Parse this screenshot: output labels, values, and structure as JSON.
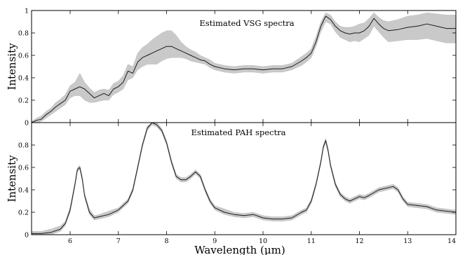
{
  "chart_data": [
    {
      "type": "area",
      "title": "Estimated VSG spectra",
      "xlabel": "",
      "ylabel": "Intensity",
      "xlim": [
        5.2,
        14
      ],
      "ylim": [
        0,
        1
      ],
      "xticks": [
        "6",
        "7",
        "8",
        "9",
        "10",
        "11",
        "12",
        "13",
        "14"
      ],
      "yticks": [
        "0",
        "0.2",
        "0.4",
        "0.6",
        "0.8",
        "1"
      ],
      "grid": false,
      "series": [
        {
          "x": [
            5.2,
            5.3,
            5.4,
            5.5,
            5.6,
            5.7,
            5.8,
            5.9,
            6.0,
            6.1,
            6.2,
            6.3,
            6.4,
            6.5,
            6.6,
            6.7,
            6.8,
            6.9,
            7.0,
            7.1,
            7.2,
            7.3,
            7.4,
            7.5,
            7.6,
            7.7,
            7.8,
            7.9,
            8.0,
            8.1,
            8.2,
            8.3,
            8.4,
            8.5,
            8.6,
            8.7,
            8.8,
            8.9,
            9.0,
            9.2,
            9.4,
            9.6,
            9.8,
            10.0,
            10.2,
            10.4,
            10.6,
            10.8,
            10.9,
            11.0,
            11.1,
            11.2,
            11.3,
            11.4,
            11.5,
            11.6,
            11.7,
            11.8,
            11.9,
            12.0,
            12.1,
            12.2,
            12.3,
            12.4,
            12.5,
            12.6,
            12.8,
            13.0,
            13.2,
            13.4,
            13.6,
            13.8,
            14.0
          ],
          "y": [
            0.0,
            0.02,
            0.03,
            0.07,
            0.1,
            0.14,
            0.17,
            0.2,
            0.28,
            0.3,
            0.32,
            0.3,
            0.26,
            0.22,
            0.24,
            0.26,
            0.24,
            0.3,
            0.32,
            0.36,
            0.46,
            0.44,
            0.54,
            0.58,
            0.6,
            0.62,
            0.64,
            0.66,
            0.68,
            0.68,
            0.66,
            0.64,
            0.62,
            0.6,
            0.58,
            0.56,
            0.55,
            0.52,
            0.5,
            0.48,
            0.47,
            0.48,
            0.48,
            0.47,
            0.48,
            0.48,
            0.5,
            0.55,
            0.58,
            0.62,
            0.72,
            0.86,
            0.95,
            0.92,
            0.86,
            0.82,
            0.8,
            0.79,
            0.8,
            0.8,
            0.82,
            0.86,
            0.93,
            0.88,
            0.84,
            0.82,
            0.83,
            0.85,
            0.86,
            0.88,
            0.86,
            0.84,
            0.84
          ],
          "lower": [
            0.0,
            0.0,
            0.01,
            0.04,
            0.07,
            0.1,
            0.13,
            0.16,
            0.22,
            0.24,
            0.24,
            0.2,
            0.18,
            0.18,
            0.19,
            0.2,
            0.2,
            0.25,
            0.27,
            0.3,
            0.38,
            0.4,
            0.47,
            0.5,
            0.52,
            0.52,
            0.52,
            0.55,
            0.57,
            0.58,
            0.58,
            0.58,
            0.57,
            0.55,
            0.54,
            0.53,
            0.52,
            0.49,
            0.47,
            0.45,
            0.44,
            0.45,
            0.45,
            0.44,
            0.45,
            0.45,
            0.47,
            0.51,
            0.54,
            0.58,
            0.68,
            0.81,
            0.9,
            0.88,
            0.81,
            0.76,
            0.74,
            0.72,
            0.73,
            0.72,
            0.75,
            0.78,
            0.86,
            0.81,
            0.76,
            0.72,
            0.73,
            0.74,
            0.74,
            0.75,
            0.73,
            0.71,
            0.71
          ],
          "upper": [
            0.01,
            0.04,
            0.06,
            0.1,
            0.13,
            0.18,
            0.21,
            0.25,
            0.33,
            0.36,
            0.44,
            0.36,
            0.31,
            0.27,
            0.29,
            0.3,
            0.29,
            0.35,
            0.37,
            0.42,
            0.52,
            0.5,
            0.62,
            0.67,
            0.7,
            0.74,
            0.77,
            0.8,
            0.82,
            0.82,
            0.78,
            0.72,
            0.68,
            0.65,
            0.63,
            0.6,
            0.58,
            0.56,
            0.53,
            0.51,
            0.5,
            0.51,
            0.51,
            0.5,
            0.51,
            0.51,
            0.53,
            0.59,
            0.62,
            0.66,
            0.77,
            0.9,
            0.98,
            0.96,
            0.9,
            0.86,
            0.85,
            0.85,
            0.86,
            0.88,
            0.89,
            0.93,
            0.98,
            0.94,
            0.91,
            0.9,
            0.92,
            0.95,
            0.96,
            0.98,
            0.97,
            0.96,
            0.96
          ]
        }
      ]
    },
    {
      "type": "area",
      "title": "Estimated PAH spectra",
      "xlabel": "Wavelength (µm)",
      "ylabel": "Intensity",
      "xlim": [
        5.2,
        14
      ],
      "ylim": [
        0,
        1
      ],
      "xticks": [
        "6",
        "7",
        "8",
        "9",
        "10",
        "11",
        "12",
        "13",
        "14"
      ],
      "yticks": [
        "0",
        "0.2",
        "0.4",
        "0.6",
        "0.8"
      ],
      "grid": false,
      "series": [
        {
          "x": [
            5.2,
            5.4,
            5.6,
            5.8,
            5.9,
            6.0,
            6.1,
            6.15,
            6.2,
            6.25,
            6.3,
            6.4,
            6.5,
            6.6,
            6.8,
            7.0,
            7.2,
            7.3,
            7.4,
            7.5,
            7.6,
            7.7,
            7.8,
            7.9,
            8.0,
            8.1,
            8.2,
            8.3,
            8.4,
            8.5,
            8.6,
            8.7,
            8.8,
            8.9,
            9.0,
            9.2,
            9.4,
            9.6,
            9.8,
            10.0,
            10.2,
            10.4,
            10.6,
            10.8,
            10.9,
            11.0,
            11.1,
            11.2,
            11.25,
            11.3,
            11.35,
            11.4,
            11.5,
            11.6,
            11.7,
            11.8,
            11.9,
            12.0,
            12.1,
            12.2,
            12.4,
            12.6,
            12.7,
            12.8,
            12.9,
            13.0,
            13.2,
            13.4,
            13.6,
            13.8,
            14.0
          ],
          "y": [
            0.01,
            0.01,
            0.02,
            0.05,
            0.1,
            0.22,
            0.45,
            0.58,
            0.6,
            0.5,
            0.35,
            0.2,
            0.15,
            0.16,
            0.18,
            0.22,
            0.3,
            0.4,
            0.6,
            0.8,
            0.95,
            1.0,
            0.98,
            0.93,
            0.82,
            0.65,
            0.52,
            0.49,
            0.49,
            0.52,
            0.56,
            0.52,
            0.4,
            0.3,
            0.24,
            0.2,
            0.18,
            0.17,
            0.18,
            0.15,
            0.14,
            0.14,
            0.15,
            0.2,
            0.22,
            0.3,
            0.45,
            0.65,
            0.78,
            0.84,
            0.75,
            0.62,
            0.45,
            0.36,
            0.32,
            0.3,
            0.32,
            0.34,
            0.33,
            0.35,
            0.4,
            0.42,
            0.43,
            0.4,
            0.32,
            0.27,
            0.26,
            0.25,
            0.22,
            0.21,
            0.2
          ],
          "lower": [
            0.0,
            0.0,
            0.0,
            0.03,
            0.08,
            0.2,
            0.43,
            0.56,
            0.58,
            0.48,
            0.33,
            0.18,
            0.13,
            0.14,
            0.16,
            0.2,
            0.28,
            0.38,
            0.58,
            0.78,
            0.93,
            0.98,
            0.96,
            0.91,
            0.8,
            0.63,
            0.5,
            0.47,
            0.47,
            0.5,
            0.54,
            0.5,
            0.38,
            0.28,
            0.22,
            0.18,
            0.16,
            0.15,
            0.16,
            0.13,
            0.12,
            0.12,
            0.13,
            0.18,
            0.2,
            0.28,
            0.43,
            0.63,
            0.76,
            0.82,
            0.73,
            0.6,
            0.43,
            0.34,
            0.3,
            0.28,
            0.3,
            0.32,
            0.31,
            0.33,
            0.38,
            0.4,
            0.41,
            0.38,
            0.3,
            0.25,
            0.24,
            0.23,
            0.2,
            0.19,
            0.18
          ],
          "upper": [
            0.03,
            0.03,
            0.05,
            0.08,
            0.12,
            0.25,
            0.47,
            0.6,
            0.62,
            0.52,
            0.37,
            0.23,
            0.17,
            0.18,
            0.21,
            0.24,
            0.32,
            0.42,
            0.62,
            0.82,
            0.97,
            1.0,
            1.0,
            0.95,
            0.84,
            0.67,
            0.54,
            0.51,
            0.51,
            0.54,
            0.58,
            0.54,
            0.42,
            0.32,
            0.26,
            0.23,
            0.2,
            0.19,
            0.2,
            0.17,
            0.16,
            0.16,
            0.17,
            0.22,
            0.24,
            0.32,
            0.47,
            0.67,
            0.8,
            0.86,
            0.77,
            0.64,
            0.47,
            0.38,
            0.34,
            0.32,
            0.34,
            0.36,
            0.35,
            0.37,
            0.42,
            0.44,
            0.45,
            0.42,
            0.34,
            0.29,
            0.28,
            0.27,
            0.24,
            0.23,
            0.22
          ]
        }
      ]
    }
  ]
}
